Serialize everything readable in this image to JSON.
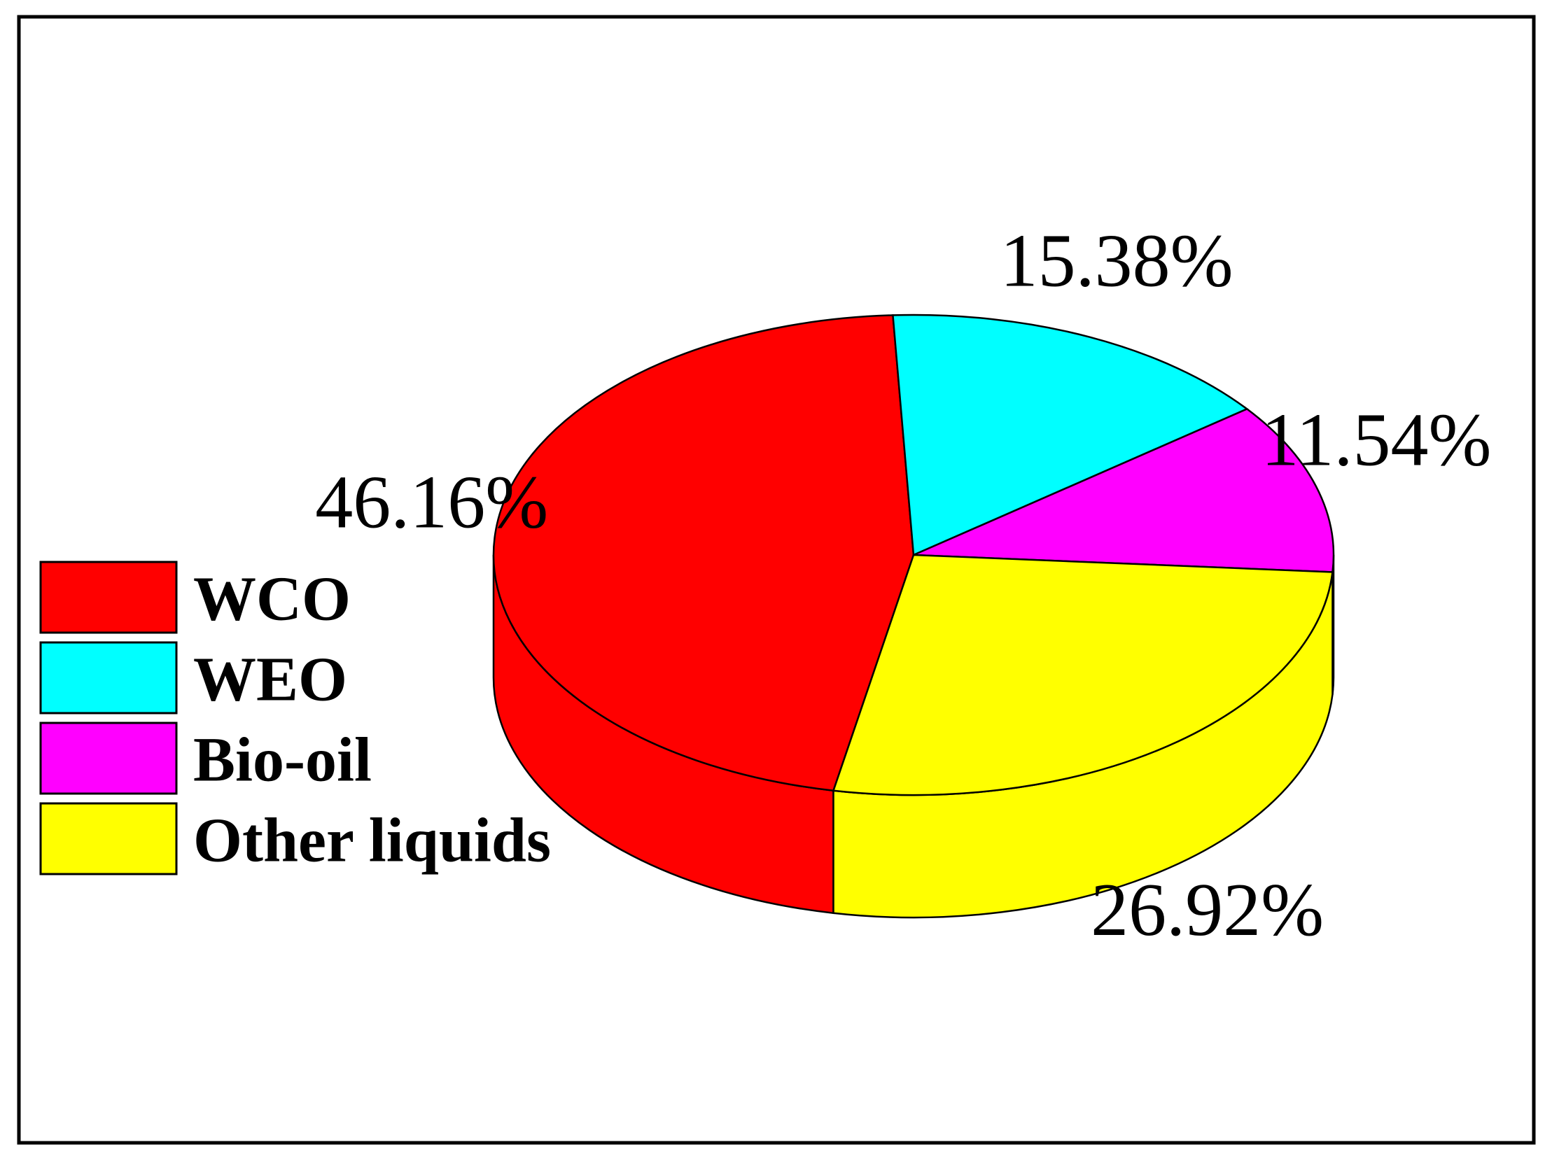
{
  "chart_data": {
    "type": "pie",
    "style": "3d",
    "title": "",
    "slices": [
      {
        "label": "WCO",
        "value": 46.16,
        "value_label": "46.16%",
        "color": "#ff0000"
      },
      {
        "label": "WEO",
        "value": 15.38,
        "value_label": "15.38%",
        "color": "#00ffff"
      },
      {
        "label": "Bio-oil",
        "value": 11.54,
        "value_label": "11.54%",
        "color": "#ff00ff"
      },
      {
        "label": "Other liquids",
        "value": 26.92,
        "value_label": "26.92%",
        "color": "#ffff00"
      }
    ],
    "legend": {
      "placement": "left",
      "items": [
        "WCO",
        "WEO",
        "Bio-oil",
        "Other liquids"
      ]
    }
  }
}
